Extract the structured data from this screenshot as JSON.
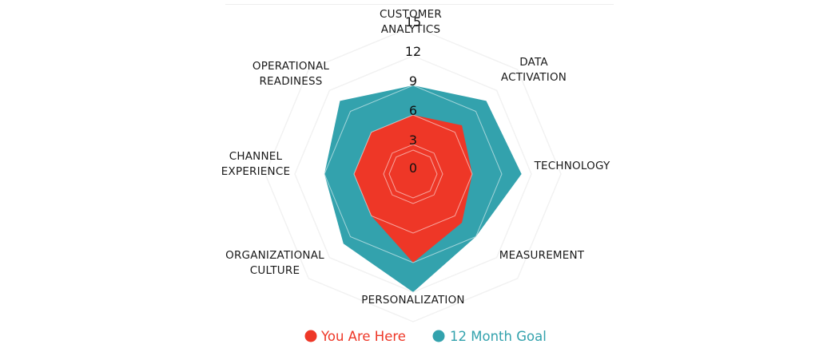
{
  "chart_data": {
    "type": "radar",
    "axes": [
      [
        "CUSTOMER",
        "ANALYTICS"
      ],
      [
        "DATA",
        "ACTIVATION"
      ],
      [
        "TECHNOLOGY"
      ],
      [
        "MEASUREMENT"
      ],
      [
        "PERSONALIZATION"
      ],
      [
        "ORGANIZATIONAL",
        "CULTURE"
      ],
      [
        "CHANNEL",
        "EXPERIENCE"
      ],
      [
        "OPERATIONAL",
        "READINESS"
      ]
    ],
    "ticks": [
      0,
      3,
      6,
      9,
      12,
      15
    ],
    "rmax": 15,
    "grid": true,
    "legend_position": "bottom",
    "series": [
      {
        "name": "12 Month Goal",
        "color": "#33a2ad",
        "values": [
          9,
          10.5,
          11,
          9,
          12,
          10,
          9,
          10.5
        ]
      },
      {
        "name": "You Are Here",
        "color": "#ee3727",
        "values": [
          6,
          7,
          6,
          7,
          9,
          6,
          6,
          6
        ]
      }
    ],
    "legend": [
      {
        "name": "You Are Here",
        "color": "#ee3727"
      },
      {
        "name": "12 Month Goal",
        "color": "#33a2ad"
      }
    ]
  }
}
